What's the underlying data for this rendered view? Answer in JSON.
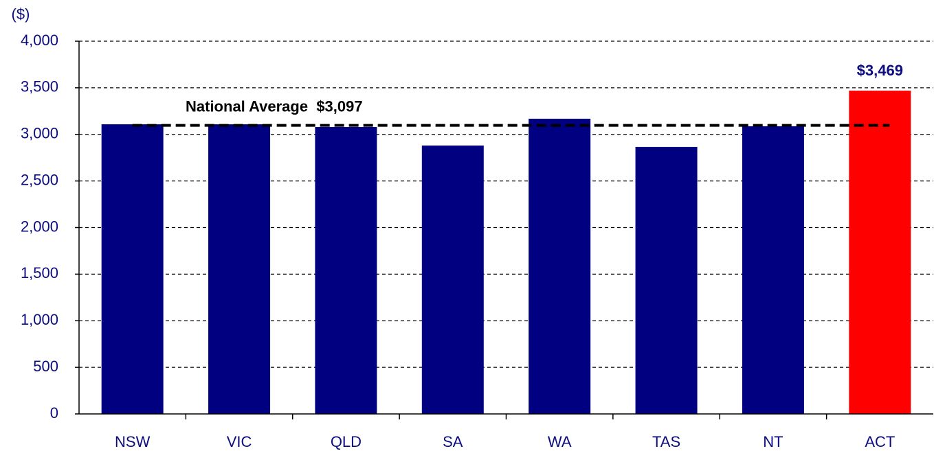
{
  "chart_data": {
    "type": "bar",
    "y_axis_label": "($)",
    "categories": [
      "NSW",
      "VIC",
      "QLD",
      "SA",
      "WA",
      "TAS",
      "NT",
      "ACT"
    ],
    "values": [
      3108,
      3108,
      3079,
      2880,
      3168,
      2866,
      3087,
      3469
    ],
    "value_labels": [
      null,
      null,
      null,
      null,
      null,
      null,
      null,
      "$3,469"
    ],
    "colors": [
      "#000080",
      "#000080",
      "#000080",
      "#000080",
      "#000080",
      "#000080",
      "#000080",
      "#ff0000"
    ],
    "average": {
      "value": 3097,
      "label": "National Average  $3,097"
    },
    "ylim": [
      0,
      4000
    ],
    "yticks": [
      0,
      500,
      {
        "value": 1000,
        "label": "1,000"
      },
      {
        "value": 1500,
        "label": "1,500"
      },
      {
        "value": 2000,
        "label": "2,000"
      },
      {
        "value": 2500,
        "label": "2,500"
      },
      {
        "value": 3000,
        "label": "3,000"
      },
      {
        "value": 3500,
        "label": "3,500"
      },
      {
        "value": 4000,
        "label": "4,000"
      }
    ],
    "grid": true
  }
}
